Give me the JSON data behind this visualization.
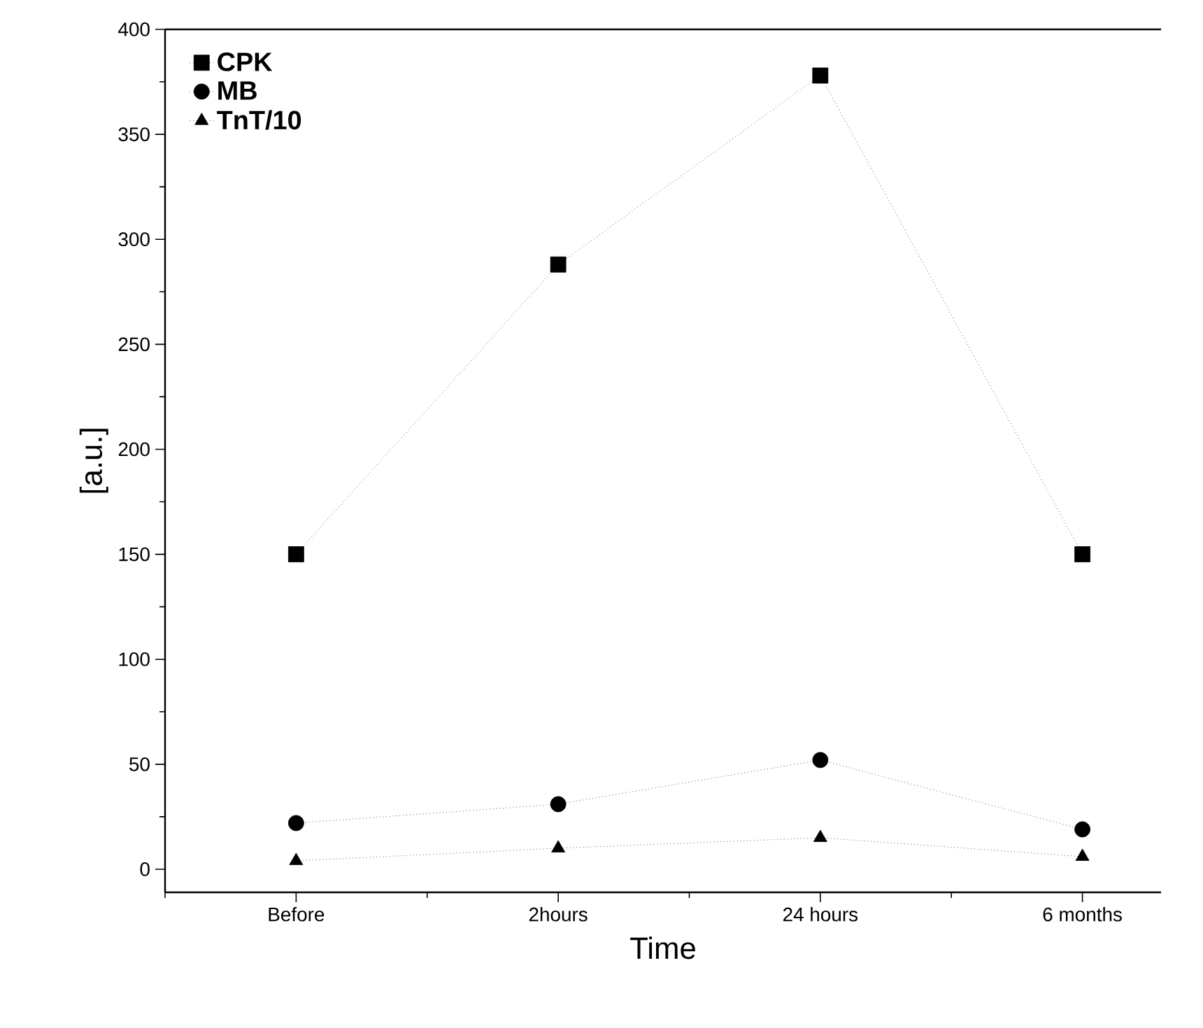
{
  "chart_data": {
    "type": "line",
    "xlabel": "Time",
    "ylabel": "[a.u.]",
    "categories": [
      "Before",
      "2hours",
      "24 hours",
      "6 months"
    ],
    "series": [
      {
        "name": "CPK",
        "color": "#000000",
        "marker": "square",
        "values": [
          150,
          288,
          378,
          150
        ]
      },
      {
        "name": "MB",
        "color": "#000000",
        "marker": "circle",
        "values": [
          22,
          31,
          52,
          19
        ]
      },
      {
        "name": "TnT/10",
        "color": "#000000",
        "marker": "triangle",
        "values": [
          4,
          10,
          15,
          6
        ]
      }
    ],
    "ylim": [
      -11,
      400
    ],
    "yticks": [
      0,
      50,
      100,
      150,
      200,
      250,
      300,
      350,
      400
    ],
    "legend": "top left",
    "line_style": "dotted",
    "grid": false
  }
}
